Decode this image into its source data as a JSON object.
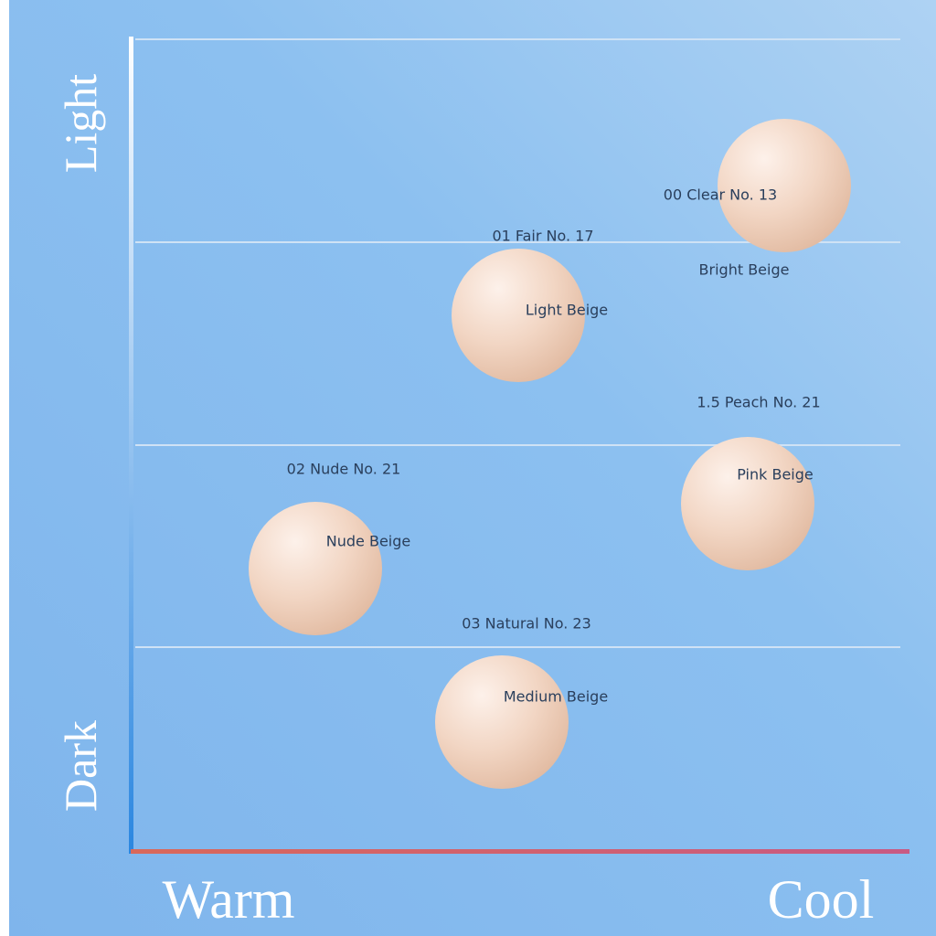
{
  "axes": {
    "top": "Light",
    "bottom": "Dark",
    "left": "Warm",
    "right": "Cool"
  },
  "shades": [
    {
      "name": "00 Clear No. 13",
      "tone": "Bright Beige"
    },
    {
      "name": "01 Fair No. 17",
      "tone": "Light Beige"
    },
    {
      "name": "1.5 Peach No. 21",
      "tone": "Pink Beige"
    },
    {
      "name": "02 Nude No. 21",
      "tone": "Nude Beige"
    },
    {
      "name": "03 Natural No. 23",
      "tone": "Medium Beige"
    }
  ]
}
